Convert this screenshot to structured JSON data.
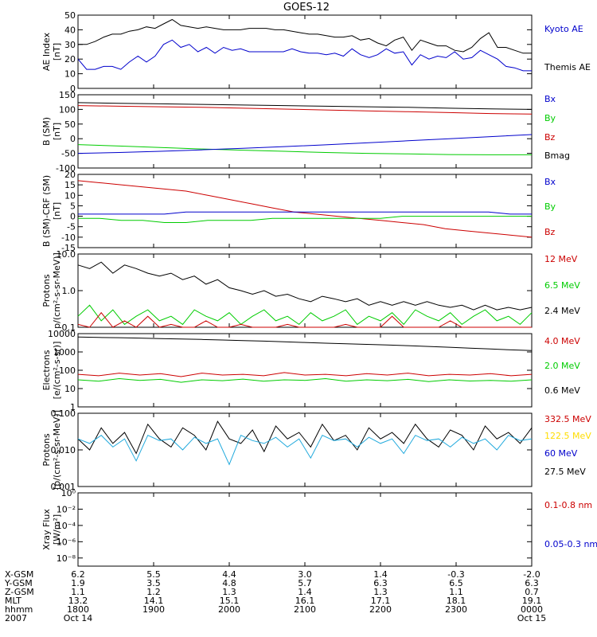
{
  "chart_data": {
    "type": "line",
    "title": "GOES-12",
    "panels": [
      {
        "ylabel": [
          "AE Index",
          "[nT]"
        ],
        "yscale": "linear",
        "ylim": [
          0,
          50
        ],
        "yticks": [
          {
            "v": 0,
            "t": "0"
          },
          {
            "v": 10,
            "t": "10"
          },
          {
            "v": 20,
            "t": "20"
          },
          {
            "v": 30,
            "t": "30"
          },
          {
            "v": 40,
            "t": "40"
          },
          {
            "v": 50,
            "t": "50"
          }
        ],
        "legend": [
          {
            "text": "Kyoto AE",
            "color": "#0000cc"
          },
          {
            "text": "Themis AE",
            "color": "#000000"
          }
        ],
        "series": [
          {
            "color": "#000000",
            "values": [
              30,
              30,
              32,
              35,
              37,
              37,
              39,
              40,
              42,
              41,
              44,
              47,
              43,
              42,
              41,
              42,
              41,
              40,
              40,
              40,
              41,
              41,
              41,
              40,
              40,
              39,
              38,
              37,
              37,
              36,
              35,
              35,
              36,
              33,
              34,
              31,
              29,
              33,
              35,
              26,
              33,
              31,
              29,
              29,
              26,
              25,
              28,
              34,
              38,
              28,
              28,
              26,
              24,
              24
            ]
          },
          {
            "color": "#0000cc",
            "values": [
              20,
              13,
              13,
              15,
              15,
              13,
              18,
              22,
              18,
              22,
              30,
              33,
              28,
              30,
              25,
              28,
              24,
              28,
              26,
              27,
              25,
              25,
              25,
              25,
              25,
              27,
              25,
              24,
              24,
              23,
              24,
              22,
              27,
              23,
              21,
              23,
              27,
              24,
              25,
              16,
              23,
              20,
              22,
              21,
              25,
              20,
              21,
              26,
              23,
              20,
              15,
              14,
              12,
              12
            ]
          }
        ]
      },
      {
        "ylabel": [
          "B (SM)",
          "[nT]"
        ],
        "yscale": "linear",
        "ylim": [
          -100,
          150
        ],
        "yticks": [
          {
            "v": -100,
            "t": "-100"
          },
          {
            "v": -50,
            "t": "-50"
          },
          {
            "v": 0,
            "t": "0"
          },
          {
            "v": 50,
            "t": "50"
          },
          {
            "v": 100,
            "t": "100"
          },
          {
            "v": 150,
            "t": "150"
          }
        ],
        "legend": [
          {
            "text": "Bx",
            "color": "#0000cc"
          },
          {
            "text": "By",
            "color": "#00cc00"
          },
          {
            "text": "Bz",
            "color": "#cc0000"
          },
          {
            "text": "Bmag",
            "color": "#000000"
          }
        ],
        "series": [
          {
            "color": "#000000",
            "values": [
              123,
              121,
              119,
              117,
              115,
              113,
              111,
              109,
              107,
              104,
              102,
              100
            ]
          },
          {
            "color": "#cc0000",
            "values": [
              113,
              111,
              109,
              107,
              104,
              101,
              98,
              95,
              92,
              89,
              86,
              84
            ]
          },
          {
            "color": "#00cc00",
            "values": [
              -20,
              -25,
              -30,
              -35,
              -39,
              -43,
              -47,
              -50,
              -52,
              -54,
              -55,
              -55
            ]
          },
          {
            "color": "#0000cc",
            "values": [
              -50,
              -47,
              -43,
              -38,
              -33,
              -27,
              -21,
              -14,
              -7,
              0,
              7,
              14
            ]
          }
        ]
      },
      {
        "ylabel": [
          "B (SM)-CRF (SM)",
          "[nT]"
        ],
        "yscale": "linear",
        "ylim": [
          -15,
          20
        ],
        "yticks": [
          {
            "v": -15,
            "t": "-15"
          },
          {
            "v": -10,
            "t": "-10"
          },
          {
            "v": -5,
            "t": "-5"
          },
          {
            "v": 0,
            "t": "0"
          },
          {
            "v": 5,
            "t": "5"
          },
          {
            "v": 10,
            "t": "10"
          },
          {
            "v": 15,
            "t": "15"
          },
          {
            "v": 20,
            "t": "20"
          }
        ],
        "legend": [
          {
            "text": "Bx",
            "color": "#0000cc"
          },
          {
            "text": "By",
            "color": "#00cc00"
          },
          {
            "text": "Bz",
            "color": "#cc0000"
          }
        ],
        "series": [
          {
            "color": "#cc0000",
            "values": [
              17,
              16,
              15,
              14,
              13,
              12,
              10,
              8,
              6,
              4,
              2,
              1,
              0,
              -1,
              -2,
              -3,
              -4,
              -6,
              -7,
              -8,
              -9,
              -10
            ]
          },
          {
            "color": "#0000cc",
            "values": [
              1,
              1,
              1,
              1,
              1,
              2,
              2,
              2,
              2,
              2,
              2,
              2,
              2,
              2,
              2,
              2,
              2,
              2,
              2,
              2,
              1,
              1
            ]
          },
          {
            "color": "#00cc00",
            "values": [
              -1,
              -1,
              -2,
              -2,
              -3,
              -3,
              -2,
              -2,
              -2,
              -1,
              -1,
              -1,
              -1,
              -1,
              -1,
              0,
              0,
              0,
              0,
              0,
              0,
              0
            ]
          }
        ]
      },
      {
        "ylabel": [
          "Protons",
          "p/(cm²-s-sr-MeV)]"
        ],
        "yscale": "log",
        "ylim": [
          0.1,
          10
        ],
        "yticks": [
          {
            "v": 0.1,
            "t": "0.1"
          },
          {
            "v": 1,
            "t": "1.0"
          },
          {
            "v": 10,
            "t": "10.0"
          }
        ],
        "legend": [
          {
            "text": "12 MeV",
            "color": "#cc0000"
          },
          {
            "text": "6.5 MeV",
            "color": "#00cc00"
          },
          {
            "text": "2.4 MeV",
            "color": "#000000"
          }
        ],
        "series": [
          {
            "color": "#000000",
            "values": [
              5,
              4,
              6,
              3,
              5,
              4,
              3,
              2.5,
              3,
              2,
              2.5,
              1.5,
              2,
              1.2,
              1,
              0.8,
              1,
              0.7,
              0.8,
              0.6,
              0.5,
              0.7,
              0.6,
              0.5,
              0.6,
              0.4,
              0.5,
              0.4,
              0.5,
              0.4,
              0.5,
              0.4,
              0.35,
              0.4,
              0.3,
              0.4,
              0.3,
              0.35,
              0.3,
              0.35
            ]
          },
          {
            "color": "#00cc00",
            "values": [
              0.2,
              0.4,
              0.15,
              0.3,
              0.12,
              0.2,
              0.3,
              0.15,
              0.2,
              0.12,
              0.3,
              0.2,
              0.15,
              0.25,
              0.12,
              0.2,
              0.3,
              0.15,
              0.2,
              0.12,
              0.25,
              0.15,
              0.2,
              0.3,
              0.12,
              0.2,
              0.15,
              0.25,
              0.12,
              0.3,
              0.2,
              0.15,
              0.25,
              0.12,
              0.2,
              0.3,
              0.15,
              0.2,
              0.12,
              0.25
            ]
          },
          {
            "color": "#cc0000",
            "values": [
              0.12,
              0.1,
              0.25,
              0.1,
              0.15,
              0.1,
              0.2,
              0.1,
              0.12,
              0.1,
              0.1,
              0.15,
              0.1,
              0.1,
              0.12,
              0.1,
              0.1,
              0.1,
              0.12,
              0.1,
              0.1,
              0.1,
              0.1,
              0.12,
              0.1,
              0.1,
              0.1,
              0.2,
              0.1,
              0.1,
              0.1,
              0.1,
              0.15,
              0.1,
              0.1,
              0.1,
              0.1,
              0.1,
              0.1,
              0.1
            ]
          }
        ]
      },
      {
        "ylabel": [
          "Electrons",
          "[e/(cm²-s-sr)]"
        ],
        "yscale": "log",
        "ylim": [
          1,
          10000
        ],
        "yticks": [
          {
            "v": 1,
            "t": "1"
          },
          {
            "v": 10,
            "t": "10"
          },
          {
            "v": 100,
            "t": "100"
          },
          {
            "v": 1000,
            "t": "1000"
          },
          {
            "v": 10000,
            "t": "10000"
          }
        ],
        "legend": [
          {
            "text": "4.0 MeV",
            "color": "#cc0000"
          },
          {
            "text": "2.0 MeV",
            "color": "#00cc00"
          },
          {
            "text": "0.6 MeV",
            "color": "#000000"
          }
        ],
        "series": [
          {
            "color": "#000000",
            "values": [
              6500,
              6200,
              6000,
              5700,
              5400,
              5100,
              4800,
              4500,
              4200,
              3900,
              3600,
              3300,
              3000,
              2800,
              2600,
              2400,
              2200,
              2000,
              1800,
              1600,
              1450,
              1300,
              1200
            ]
          },
          {
            "color": "#cc0000",
            "values": [
              60,
              50,
              70,
              55,
              65,
              45,
              70,
              55,
              60,
              50,
              75,
              55,
              60,
              50,
              65,
              55,
              70,
              50,
              60,
              55,
              65,
              50,
              60
            ]
          },
          {
            "color": "#00cc00",
            "values": [
              30,
              25,
              35,
              28,
              32,
              22,
              30,
              27,
              33,
              25,
              30,
              28,
              35,
              25,
              30,
              27,
              32,
              24,
              30,
              26,
              28,
              25,
              30
            ]
          }
        ]
      },
      {
        "ylabel": [
          "Protons",
          "[p/(cm²-s-sr-MeV)]"
        ],
        "yscale": "log",
        "ylim": [
          0.001,
          0.1
        ],
        "yticks": [
          {
            "v": 0.001,
            "t": "0.001"
          },
          {
            "v": 0.01,
            "t": "0.010"
          },
          {
            "v": 0.1,
            "t": "0.100"
          }
        ],
        "legend": [
          {
            "text": "332.5 MeV",
            "color": "#cc0000"
          },
          {
            "text": "122.5 MeV",
            "color": "#ffdd00"
          },
          {
            "text": "60 MeV",
            "color": "#0000cc"
          },
          {
            "text": "27.5 MeV",
            "color": "#000000"
          }
        ],
        "series": [
          {
            "color": "#000000",
            "values": [
              0.02,
              0.01,
              0.04,
              0.015,
              0.03,
              0.008,
              0.05,
              0.02,
              0.012,
              0.04,
              0.025,
              0.01,
              0.06,
              0.02,
              0.015,
              0.035,
              0.009,
              0.045,
              0.02,
              0.03,
              0.012,
              0.05,
              0.018,
              0.025,
              0.01,
              0.04,
              0.02,
              0.03,
              0.015,
              0.05,
              0.02,
              0.012,
              0.035,
              0.025,
              0.01,
              0.045,
              0.02,
              0.03,
              0.015,
              0.04
            ]
          },
          {
            "color": "#22aadd",
            "values": [
              0.02,
              0.015,
              0.025,
              0.012,
              0.02,
              0.005,
              0.025,
              0.018,
              0.02,
              0.01,
              0.022,
              0.015,
              0.02,
              0.004,
              0.025,
              0.018,
              0.015,
              0.022,
              0.012,
              0.02,
              0.006,
              0.025,
              0.018,
              0.02,
              0.012,
              0.022,
              0.015,
              0.02,
              0.008,
              0.025,
              0.018,
              0.02,
              0.012,
              0.022,
              0.015,
              0.02,
              0.01,
              0.025,
              0.018,
              0.02
            ]
          }
        ]
      },
      {
        "ylabel": [
          "Xray Flux",
          "[W/m²]"
        ],
        "yscale": "log",
        "ylim": [
          1e-09,
          1
        ],
        "yticks": [
          {
            "v": 1,
            "t": "10⁰"
          },
          {
            "v": 0.01,
            "t": "10⁻²"
          },
          {
            "v": 0.0001,
            "t": "10⁻⁴"
          },
          {
            "v": 1e-06,
            "t": "10⁻⁶"
          },
          {
            "v": 1e-08,
            "t": "10⁻⁸"
          }
        ],
        "legend": [
          {
            "text": "0.1-0.8 nm",
            "color": "#cc0000"
          },
          {
            "text": "0.05-0.3 nm",
            "color": "#0000cc"
          }
        ],
        "series": []
      }
    ],
    "ephemeris": {
      "labels": [
        "X-GSM",
        "Y-GSM",
        "Z-GSM",
        "MLT",
        "hhmm",
        "2007"
      ],
      "columns": [
        [
          "6.2",
          "1.9",
          "1.1",
          "13.2",
          "1800",
          "Oct 14"
        ],
        [
          "5.5",
          "3.5",
          "1.2",
          "14.1",
          "1900",
          ""
        ],
        [
          "4.4",
          "4.8",
          "1.3",
          "15.1",
          "2000",
          ""
        ],
        [
          "3.0",
          "5.7",
          "1.4",
          "16.1",
          "2100",
          ""
        ],
        [
          "1.4",
          "6.3",
          "1.3",
          "17.1",
          "2200",
          ""
        ],
        [
          "-0.3",
          "6.5",
          "1.1",
          "18.1",
          "2300",
          ""
        ],
        [
          "-2.0",
          "6.3",
          "0.7",
          "19.1",
          "0000",
          "Oct 15"
        ]
      ]
    }
  }
}
